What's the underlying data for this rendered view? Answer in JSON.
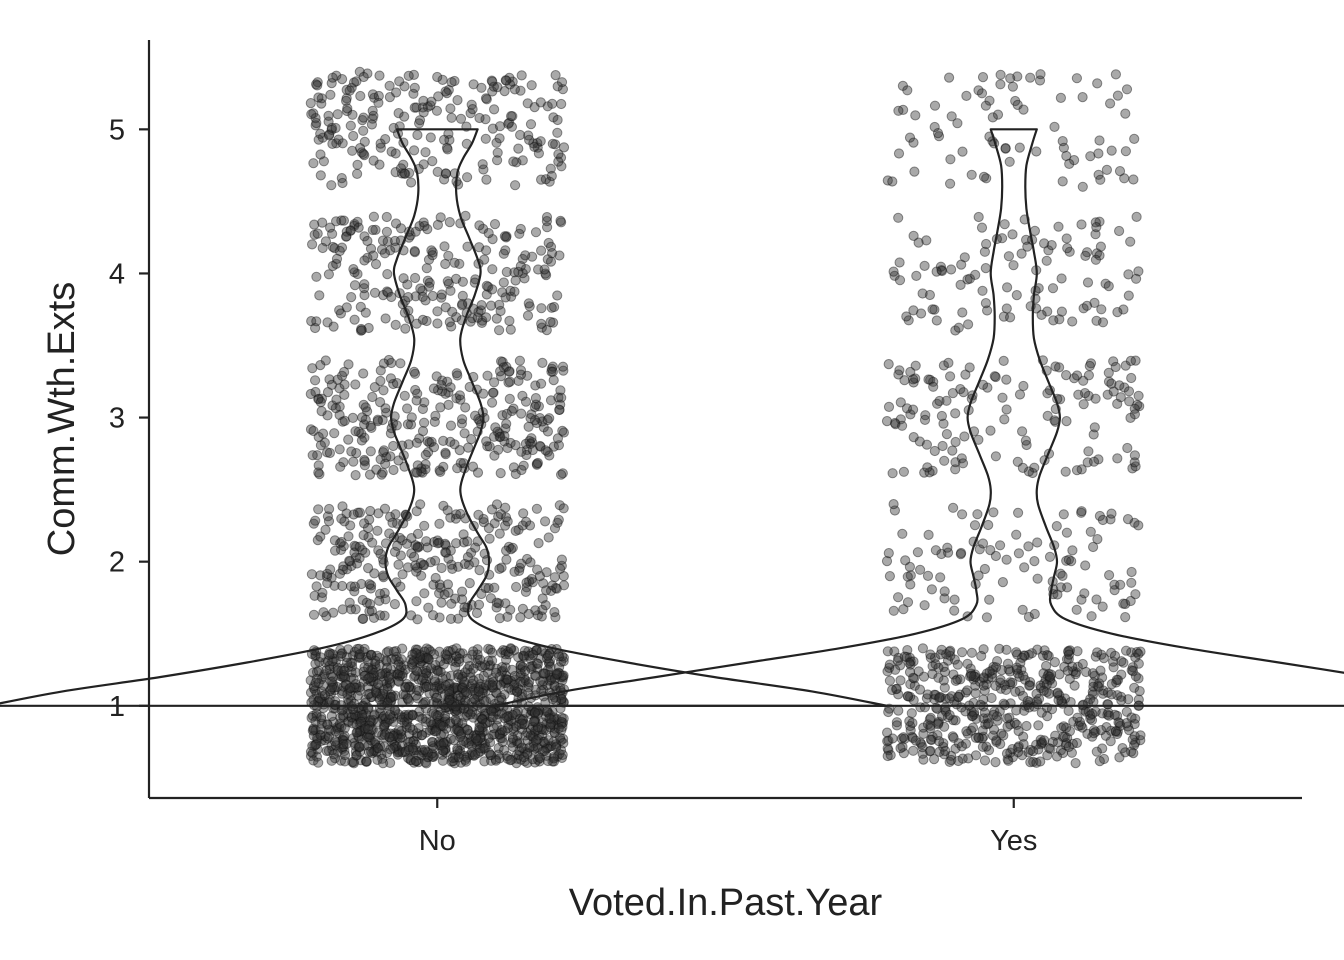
{
  "chart_data": {
    "type": "violin",
    "overlay": "jittered-points",
    "xlabel": "Voted.In.Past.Year",
    "ylabel": "Comm.Wth.Exts",
    "categories": [
      "No",
      "Yes"
    ],
    "y_ticks": [
      "1",
      "2",
      "3",
      "4",
      "5"
    ],
    "ylim": [
      0.36,
      5.62
    ],
    "jitter": {
      "x_half_width": 0.22,
      "y_half_width": 0.4
    },
    "groups": [
      {
        "name": "No",
        "response_counts": {
          "1": 1260,
          "2": 300,
          "3": 300,
          "4": 240,
          "5": 230
        },
        "violin_profile": [
          [
            1.0,
            0.78
          ],
          [
            1.1,
            0.65
          ],
          [
            1.2,
            0.48
          ],
          [
            1.3,
            0.33
          ],
          [
            1.4,
            0.2
          ],
          [
            1.5,
            0.11
          ],
          [
            1.6,
            0.06
          ],
          [
            1.7,
            0.055
          ],
          [
            1.8,
            0.07
          ],
          [
            1.9,
            0.085
          ],
          [
            2.0,
            0.09
          ],
          [
            2.1,
            0.085
          ],
          [
            2.2,
            0.07
          ],
          [
            2.35,
            0.05
          ],
          [
            2.5,
            0.04
          ],
          [
            2.65,
            0.05
          ],
          [
            2.8,
            0.065
          ],
          [
            2.9,
            0.075
          ],
          [
            3.0,
            0.08
          ],
          [
            3.1,
            0.075
          ],
          [
            3.25,
            0.06
          ],
          [
            3.4,
            0.045
          ],
          [
            3.55,
            0.04
          ],
          [
            3.7,
            0.05
          ],
          [
            3.85,
            0.065
          ],
          [
            4.0,
            0.075
          ],
          [
            4.1,
            0.07
          ],
          [
            4.25,
            0.055
          ],
          [
            4.4,
            0.04
          ],
          [
            4.55,
            0.033
          ],
          [
            4.7,
            0.035
          ],
          [
            4.8,
            0.045
          ],
          [
            4.9,
            0.06
          ],
          [
            5.0,
            0.07
          ]
        ]
      },
      {
        "name": "Yes",
        "response_counts": {
          "1": 520,
          "2": 110,
          "3": 150,
          "4": 110,
          "5": 80
        },
        "violin_profile": [
          [
            1.0,
            0.9
          ],
          [
            1.1,
            0.78
          ],
          [
            1.2,
            0.62
          ],
          [
            1.3,
            0.46
          ],
          [
            1.4,
            0.3
          ],
          [
            1.5,
            0.17
          ],
          [
            1.6,
            0.09
          ],
          [
            1.7,
            0.065
          ],
          [
            1.8,
            0.065
          ],
          [
            1.9,
            0.07
          ],
          [
            2.0,
            0.075
          ],
          [
            2.1,
            0.07
          ],
          [
            2.25,
            0.055
          ],
          [
            2.4,
            0.042
          ],
          [
            2.5,
            0.04
          ],
          [
            2.6,
            0.045
          ],
          [
            2.75,
            0.06
          ],
          [
            2.9,
            0.075
          ],
          [
            3.0,
            0.08
          ],
          [
            3.1,
            0.075
          ],
          [
            3.25,
            0.06
          ],
          [
            3.4,
            0.045
          ],
          [
            3.55,
            0.035
          ],
          [
            3.7,
            0.033
          ],
          [
            3.85,
            0.035
          ],
          [
            4.0,
            0.04
          ],
          [
            4.15,
            0.035
          ],
          [
            4.3,
            0.028
          ],
          [
            4.45,
            0.022
          ],
          [
            4.6,
            0.02
          ],
          [
            4.75,
            0.022
          ],
          [
            4.9,
            0.032
          ],
          [
            5.0,
            0.04
          ]
        ]
      }
    ],
    "colors": {
      "point_fill": "#333333",
      "point_stroke": "#111111",
      "violin_stroke": "#222222",
      "axis": "#222222",
      "background": "#ffffff"
    },
    "grid": false,
    "legend": "none"
  }
}
